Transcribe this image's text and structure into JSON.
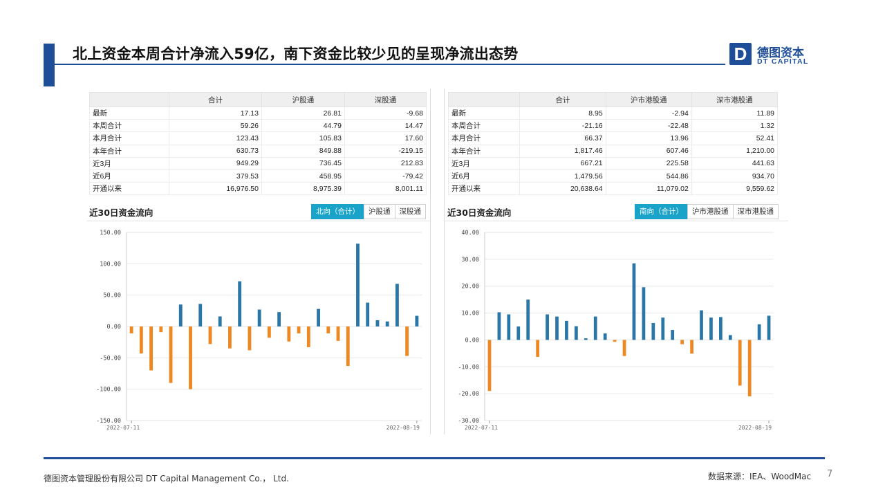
{
  "header": {
    "title": "北上资金本周合计净流入59亿，南下资金比较少见的呈现净流出态势",
    "logo_mark": "D",
    "logo_cn": "德图资本",
    "logo_en": "DT CAPITAL"
  },
  "left_panel": {
    "table": {
      "headers": [
        "",
        "合计",
        "沪股通",
        "深股通"
      ],
      "rows": [
        [
          "最新",
          "17.13",
          "26.81",
          "-9.68"
        ],
        [
          "本周合计",
          "59.26",
          "44.79",
          "14.47"
        ],
        [
          "本月合计",
          "123.43",
          "105.83",
          "17.60"
        ],
        [
          "本年合计",
          "630.73",
          "849.88",
          "-219.15"
        ],
        [
          "近3月",
          "949.29",
          "736.45",
          "212.83"
        ],
        [
          "近6月",
          "379.53",
          "458.95",
          "-79.42"
        ],
        [
          "开通以来",
          "16,976.50",
          "8,975.39",
          "8,001.11"
        ]
      ]
    },
    "chart_title": "近30日资金流向",
    "tabs": [
      "北向（合计）",
      "沪股通",
      "深股通"
    ],
    "active_tab": 0
  },
  "right_panel": {
    "table": {
      "headers": [
        "",
        "合计",
        "沪市港股通",
        "深市港股通"
      ],
      "rows": [
        [
          "最新",
          "8.95",
          "-2.94",
          "11.89"
        ],
        [
          "本周合计",
          "-21.16",
          "-22.48",
          "1.32"
        ],
        [
          "本月合计",
          "66.37",
          "13.96",
          "52.41"
        ],
        [
          "本年合计",
          "1,817.46",
          "607.46",
          "1,210.00"
        ],
        [
          "近3月",
          "667.21",
          "225.58",
          "441.63"
        ],
        [
          "近6月",
          "1,479.56",
          "544.86",
          "934.70"
        ],
        [
          "开通以来",
          "20,638.64",
          "11,079.02",
          "9,559.62"
        ]
      ]
    },
    "chart_title": "近30日资金流向",
    "tabs": [
      "南向（合计）",
      "沪市港股通",
      "深市港股通"
    ],
    "active_tab": 0
  },
  "chart_data": [
    {
      "type": "bar",
      "title": "近30日资金流向",
      "x_start_label": "2022-07-11",
      "x_end_label": "2022-08-19",
      "ylim": [
        -150,
        150
      ],
      "yticks": [
        150,
        100,
        50,
        0,
        -50,
        -100,
        -150
      ],
      "ytick_labels": [
        "150.00",
        "100.00",
        "50.00",
        "0.00",
        "-50.00",
        "-100.00",
        "-150.00"
      ],
      "values": [
        -11,
        -43,
        -70,
        -9,
        -90,
        35,
        -100,
        36,
        -28,
        16,
        -35,
        72,
        -38,
        27,
        -18,
        23,
        -24,
        -11,
        -33,
        28,
        -11,
        -23,
        -63,
        132,
        38,
        10,
        8,
        68,
        -47,
        17
      ],
      "positive_color": "#2a76a6",
      "negative_color": "#ee8823",
      "grid": true
    },
    {
      "type": "bar",
      "title": "近30日资金流向",
      "x_start_label": "2022-07-11",
      "x_end_label": "2022-08-19",
      "ylim": [
        -30,
        40
      ],
      "yticks": [
        40,
        30,
        20,
        10,
        0,
        -10,
        -20,
        -30
      ],
      "ytick_labels": [
        "40.00",
        "30.00",
        "20.00",
        "10.00",
        "0.00",
        "-10.00",
        "-20.00",
        "-30.00"
      ],
      "values": [
        -19,
        10.3,
        9.5,
        5,
        15,
        -6.3,
        9.5,
        8.7,
        7.1,
        5.1,
        0.6,
        8.7,
        2.4,
        -0.7,
        -6,
        28.5,
        19.6,
        6.3,
        8.3,
        3.7,
        -1.6,
        -5.1,
        11,
        8.3,
        8.5,
        1.8,
        -17,
        -21,
        5.8,
        9
      ],
      "positive_color": "#2a76a6",
      "negative_color": "#ee8823",
      "grid": true
    }
  ],
  "footer": {
    "company": "德图资本管理股份有限公司  DT Capital Management Co.， Ltd.",
    "source": "数据来源：IEA、WoodMac",
    "page": "7"
  }
}
